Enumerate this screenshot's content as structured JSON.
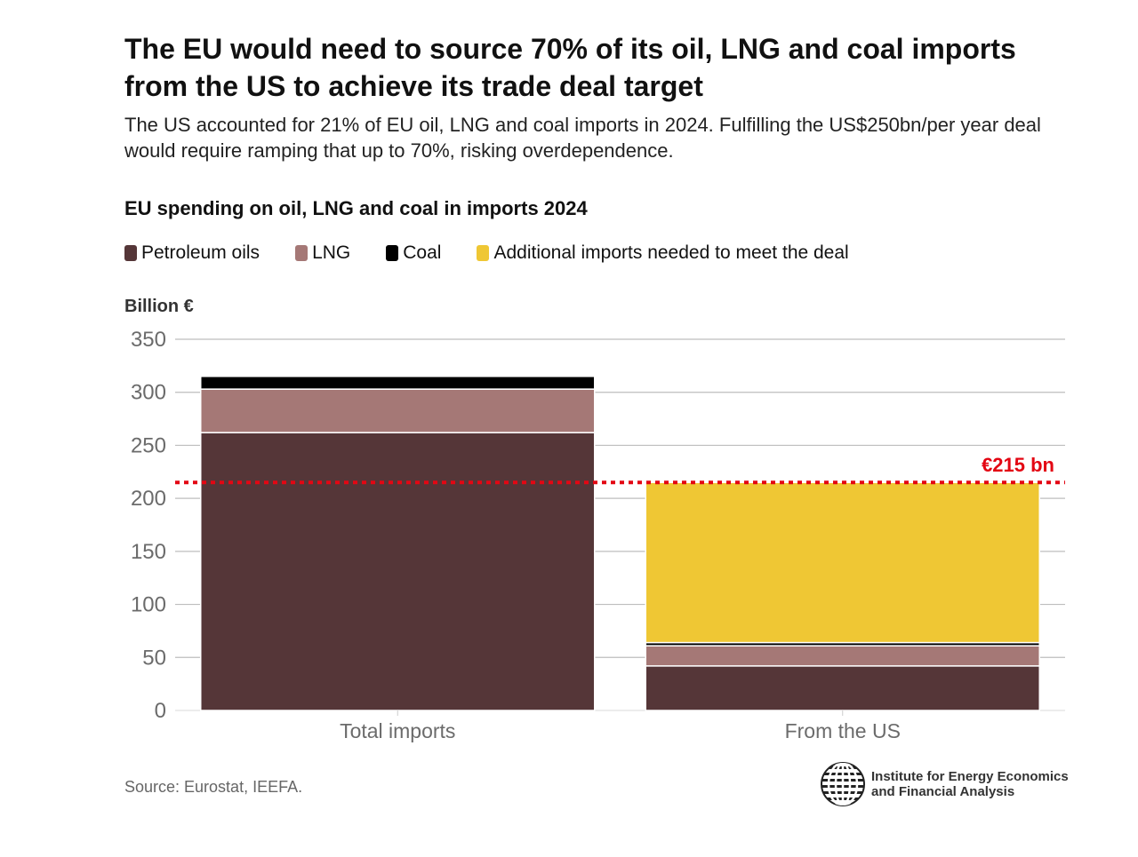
{
  "title": "The EU would need to source 70% of its oil, LNG and coal imports from the US to achieve its trade deal target",
  "subtitle": "The US accounted for 21% of EU oil, LNG and coal imports in 2024. Fulfilling the US$250bn/per year deal would require ramping that up to 70%, risking overdependence.",
  "source": "Source: Eurostat, IEEFA.",
  "logo": {
    "line1": "Institute for Energy Economics",
    "line2": "and Financial Analysis",
    "icon": "globe-icon"
  },
  "colors": {
    "petroleum": "#553638",
    "lng": "#a57876",
    "coal": "#000000",
    "additional": "#efc734",
    "target_line": "#e30613",
    "grid": "#bdbdbd",
    "axis_text": "#6b6b6b"
  },
  "chart_data": {
    "type": "bar",
    "stacked": true,
    "title": "EU spending on oil, LNG and coal in imports 2024",
    "ylabel": "Billion €",
    "ylim": [
      0,
      350
    ],
    "yticks": [
      "0",
      "50",
      "100",
      "150",
      "200",
      "250",
      "300",
      "350"
    ],
    "grid": true,
    "legend_position": "top-left",
    "categories": [
      "Total imports",
      "From the US"
    ],
    "series": [
      {
        "name": "Petroleum oils",
        "values": [
          262,
          42
        ],
        "color": "#553638"
      },
      {
        "name": "LNG",
        "values": [
          41,
          19
        ],
        "color": "#a57876"
      },
      {
        "name": "Coal",
        "values": [
          12,
          3
        ],
        "color": "#000000"
      },
      {
        "name": "Additional imports needed to meet the deal",
        "values": [
          0,
          151
        ],
        "color": "#efc734"
      }
    ],
    "reference_line": {
      "value": 215,
      "label": "€215 bn",
      "style": "dotted",
      "color": "#e30613"
    }
  }
}
